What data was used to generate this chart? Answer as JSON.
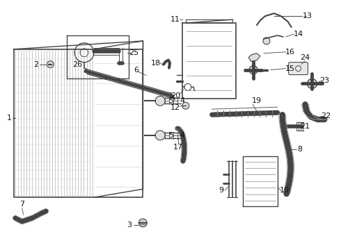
{
  "bg_color": "#ffffff",
  "line_color": "#444444",
  "figsize": [
    4.9,
    3.6
  ],
  "dpi": 100
}
